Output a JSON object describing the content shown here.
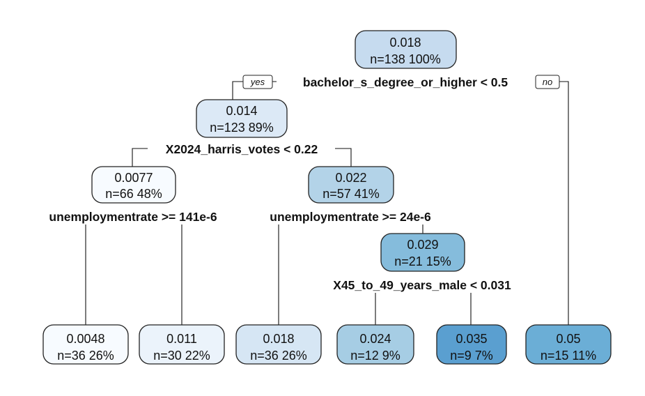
{
  "tree": {
    "yes_label": "yes",
    "no_label": "no",
    "nodes": [
      {
        "id": "root",
        "value": "0.018",
        "stats": "n=138  100%",
        "fill": "#c6dbef"
      },
      {
        "id": "n2",
        "value": "0.014",
        "stats": "n=123  89%",
        "fill": "#dce9f6"
      },
      {
        "id": "n3",
        "value": "0.05",
        "stats": "n=15  11%",
        "fill": "#6baed6"
      },
      {
        "id": "n4",
        "value": "0.0077",
        "stats": "n=66  48%",
        "fill": "#f7fbff"
      },
      {
        "id": "n5",
        "value": "0.022",
        "stats": "n=57  41%",
        "fill": "#b3d3e8"
      },
      {
        "id": "n8",
        "value": "0.0048",
        "stats": "n=36  26%",
        "fill": "#f7fbff"
      },
      {
        "id": "n9",
        "value": "0.011",
        "stats": "n=30  22%",
        "fill": "#ebf3fb"
      },
      {
        "id": "n10",
        "value": "0.018",
        "stats": "n=36  26%",
        "fill": "#d6e6f4"
      },
      {
        "id": "n11",
        "value": "0.029",
        "stats": "n=21  15%",
        "fill": "#85bcdc"
      },
      {
        "id": "n22",
        "value": "0.024",
        "stats": "n=12  9%",
        "fill": "#a6cde4"
      },
      {
        "id": "n23",
        "value": "0.035",
        "stats": "n=9  7%",
        "fill": "#5a9fd0"
      }
    ],
    "splits": [
      {
        "id": "s-root",
        "label": "bachelor_s_degree_or_higher < 0.5"
      },
      {
        "id": "s-n2",
        "label": "X2024_harris_votes < 0.22"
      },
      {
        "id": "s-n4",
        "label": "unemploymentrate >= 141e-6"
      },
      {
        "id": "s-n5",
        "label": "unemploymentrate >= 24e-6"
      },
      {
        "id": "s-n11",
        "label": "X45_to_49_years_male < 0.031"
      }
    ]
  }
}
